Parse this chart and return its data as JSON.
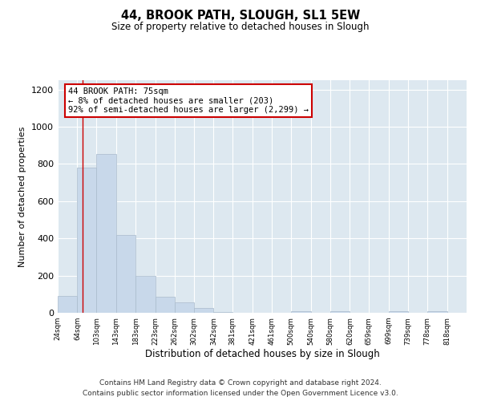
{
  "title": "44, BROOK PATH, SLOUGH, SL1 5EW",
  "subtitle": "Size of property relative to detached houses in Slough",
  "xlabel": "Distribution of detached houses by size in Slough",
  "ylabel": "Number of detached properties",
  "bar_color": "#c8d8ea",
  "bar_edge_color": "#aabbcc",
  "bg_color": "#dde8f0",
  "annotation_text": "44 BROOK PATH: 75sqm\n← 8% of detached houses are smaller (203)\n92% of semi-detached houses are larger (2,299) →",
  "vline_x": 75,
  "vline_color": "#cc0000",
  "categories": [
    "24sqm",
    "64sqm",
    "103sqm",
    "143sqm",
    "183sqm",
    "223sqm",
    "262sqm",
    "302sqm",
    "342sqm",
    "381sqm",
    "421sqm",
    "461sqm",
    "500sqm",
    "540sqm",
    "580sqm",
    "620sqm",
    "659sqm",
    "699sqm",
    "739sqm",
    "778sqm",
    "818sqm"
  ],
  "bin_edges": [
    24,
    64,
    103,
    143,
    183,
    223,
    262,
    302,
    342,
    381,
    421,
    461,
    500,
    540,
    580,
    620,
    659,
    699,
    739,
    778,
    818,
    858
  ],
  "values": [
    90,
    780,
    855,
    420,
    200,
    85,
    55,
    25,
    5,
    0,
    0,
    0,
    10,
    0,
    10,
    0,
    0,
    10,
    0,
    10,
    0
  ],
  "ylim": [
    0,
    1250
  ],
  "yticks": [
    0,
    200,
    400,
    600,
    800,
    1000,
    1200
  ],
  "footnote1": "Contains HM Land Registry data © Crown copyright and database right 2024.",
  "footnote2": "Contains public sector information licensed under the Open Government Licence v3.0.",
  "annotation_box_color": "#ffffff",
  "annotation_box_edge": "#cc0000"
}
